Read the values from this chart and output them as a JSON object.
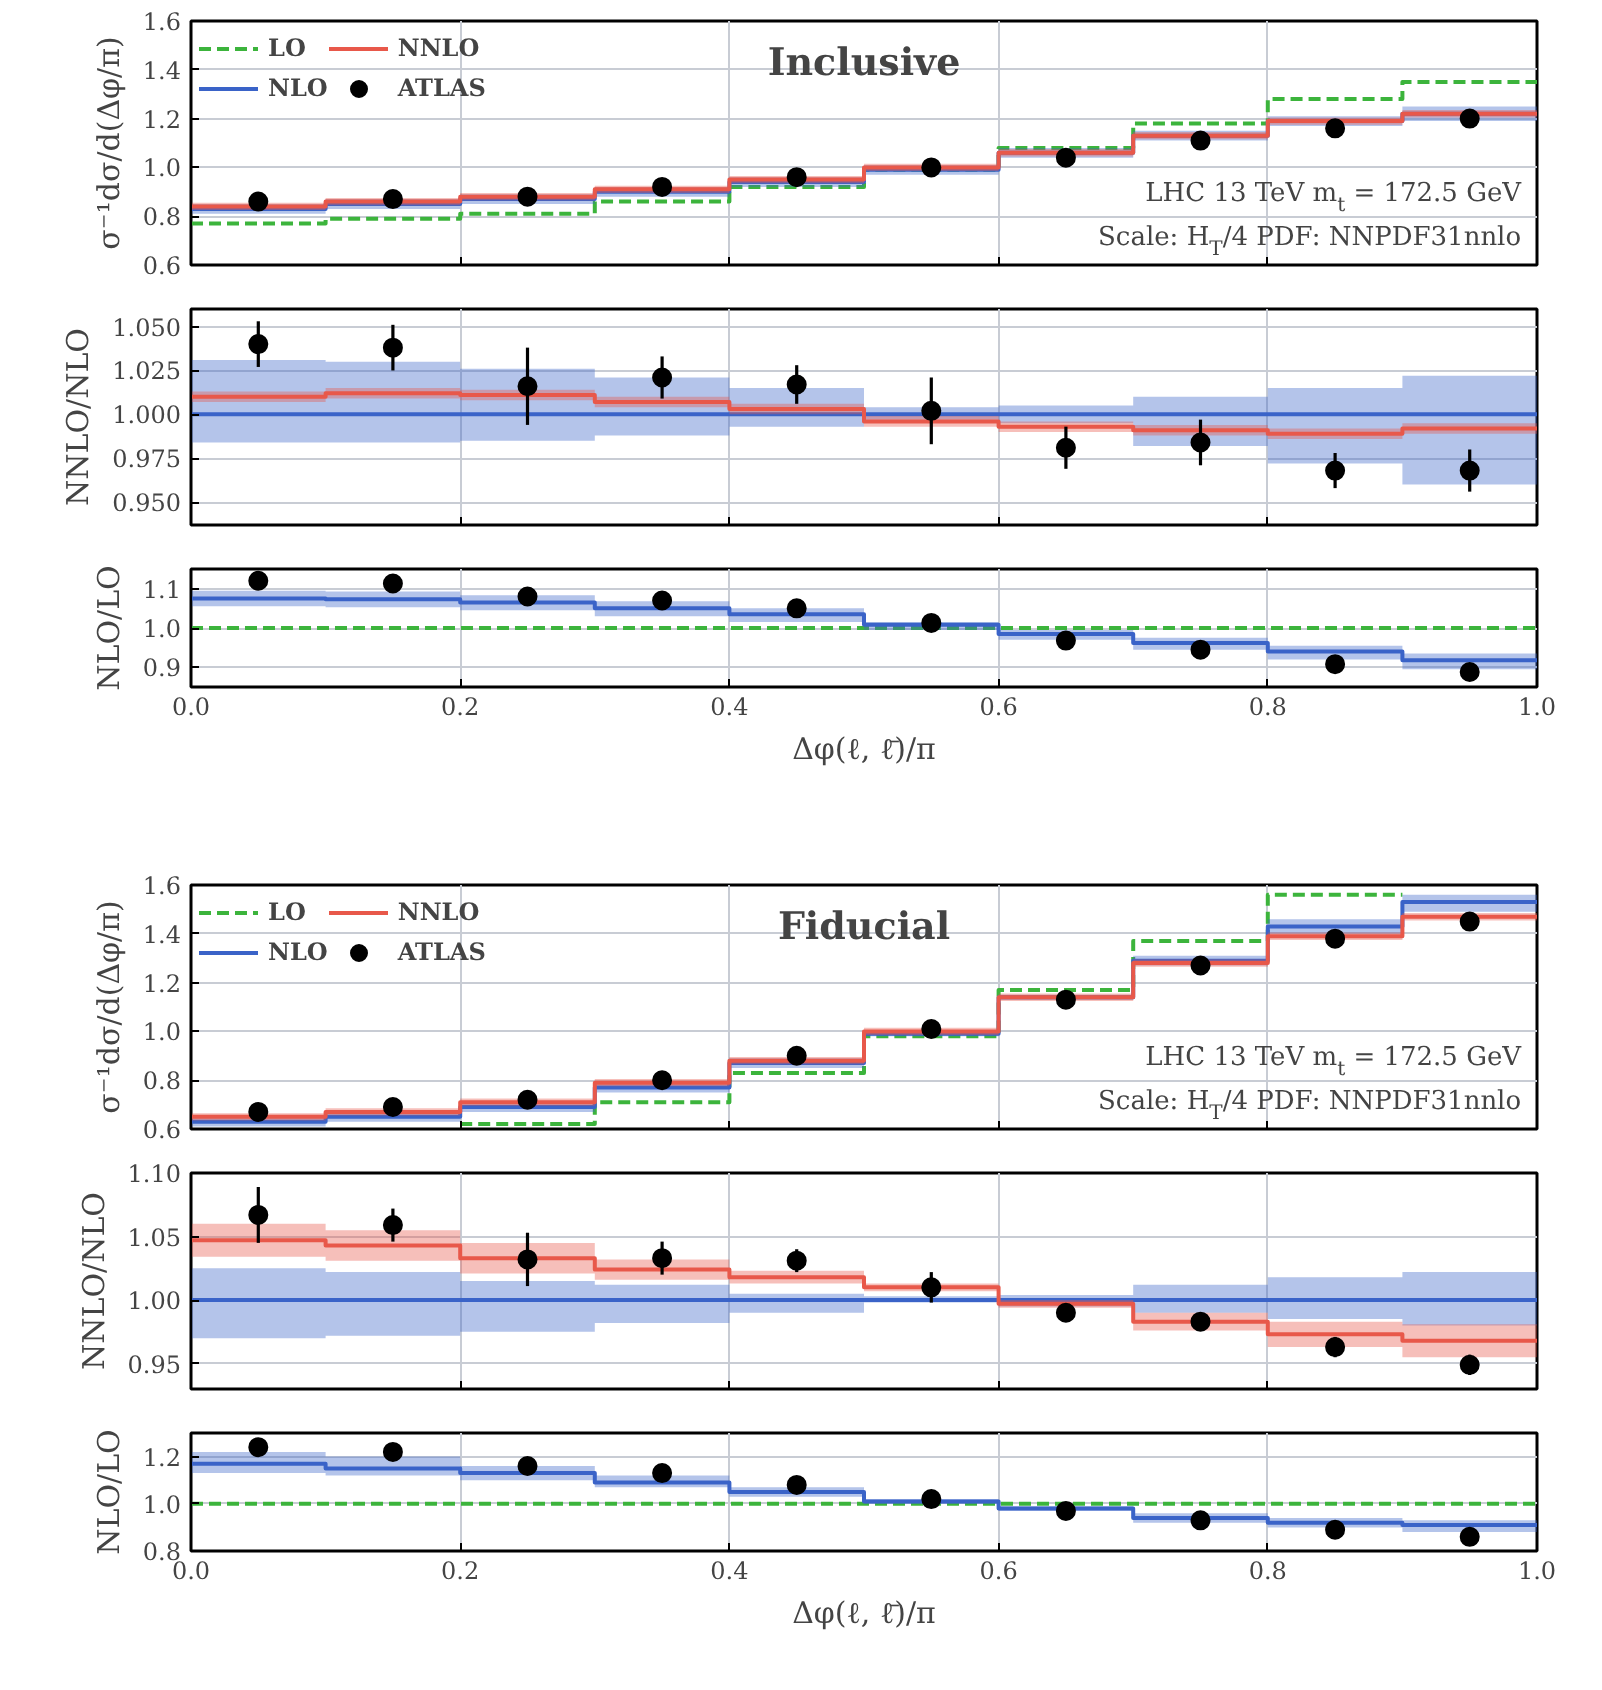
{
  "chart_data": [
    {
      "type": "step",
      "title": "Inclusive",
      "ylabel": "σ⁻¹dσ/d(Δφ/π)",
      "xlim": [
        0,
        1
      ],
      "ylim": [
        0.6,
        1.6
      ],
      "xticks": [
        0,
        0.2,
        0.4,
        0.6,
        0.8,
        1
      ],
      "yticks": [
        0.6,
        0.8,
        {
          "value": 1.0,
          "label": "1.0"
        },
        1.2,
        1.4,
        1.6
      ],
      "tick_labels": "y",
      "grid": true,
      "legend": "top left",
      "annotations": [
        "LHC 13 TeV m$_{t}$ = 172.5 GeV",
        "Scale: H$_{T}$/4 PDF: NNPDF31nnlo"
      ],
      "series": [
        {
          "name": "LO",
          "line_style": "dashed",
          "color": "#3cb43c",
          "x": [
            0,
            0.1,
            0.2,
            0.3,
            0.4,
            0.5,
            0.6,
            0.7,
            0.8,
            0.9,
            1
          ],
          "values": [
            0.77,
            0.79,
            0.81,
            0.86,
            0.92,
            0.99,
            1.08,
            1.18,
            1.28,
            1.35,
            1.35
          ]
        },
        {
          "name": "NLO",
          "color": "#3a63c8",
          "x": [
            0,
            0.1,
            0.2,
            0.3,
            0.4,
            0.5,
            0.6,
            0.7,
            0.8,
            0.9,
            1
          ],
          "values": [
            0.83,
            0.85,
            0.87,
            0.9,
            0.94,
            0.99,
            1.06,
            1.13,
            1.19,
            1.22,
            1.22
          ],
          "lower": [
            0.81,
            0.83,
            0.85,
            0.88,
            0.92,
            0.97,
            1.04,
            1.11,
            1.17,
            1.19,
            1.19
          ],
          "upper": [
            0.85,
            0.87,
            0.89,
            0.92,
            0.96,
            1.01,
            1.08,
            1.15,
            1.21,
            1.25,
            1.25
          ]
        },
        {
          "name": "NNLO",
          "color": "#e8584a",
          "x": [
            0,
            0.1,
            0.2,
            0.3,
            0.4,
            0.5,
            0.6,
            0.7,
            0.8,
            0.9,
            1
          ],
          "values": [
            0.84,
            0.86,
            0.88,
            0.91,
            0.95,
            1.0,
            1.06,
            1.13,
            1.19,
            1.22,
            1.22
          ],
          "lower": [
            0.825,
            0.845,
            0.865,
            0.895,
            0.935,
            0.985,
            1.045,
            1.115,
            1.175,
            1.205,
            1.205
          ],
          "upper": [
            0.855,
            0.875,
            0.895,
            0.925,
            0.965,
            1.015,
            1.075,
            1.145,
            1.205,
            1.235,
            1.235
          ]
        },
        {
          "name": "ATLAS",
          "type": "scatter",
          "marker": "circle",
          "color": "#000000",
          "x": [
            0.05,
            0.15,
            0.25,
            0.35,
            0.45,
            0.55,
            0.65,
            0.75,
            0.85,
            0.95
          ],
          "values": [
            0.86,
            0.87,
            0.88,
            0.92,
            0.96,
            1.0,
            1.04,
            1.11,
            1.16,
            1.2
          ]
        }
      ]
    },
    {
      "type": "step",
      "ylabel": "NNLO/NLO",
      "xlim": [
        0,
        1
      ],
      "ylim": [
        0.937,
        1.06
      ],
      "xticks": [
        0,
        0.2,
        0.4,
        0.6,
        0.8,
        1
      ],
      "yticks": [
        {
          "value": 0.95,
          "label": "0.950"
        },
        {
          "value": 0.975,
          "label": "0.975"
        },
        {
          "value": 1.0,
          "label": "1.000"
        },
        {
          "value": 1.025,
          "label": "1.025"
        },
        {
          "value": 1.05,
          "label": "1.050"
        }
      ],
      "tick_labels": "y",
      "grid": true,
      "series": [
        {
          "color": "#3a63c8",
          "x": [
            0,
            0.1,
            0.2,
            0.3,
            0.4,
            0.5,
            0.6,
            0.7,
            0.8,
            0.9,
            1
          ],
          "values": [
            1,
            1,
            1,
            1,
            1,
            1,
            1,
            1,
            1,
            1,
            1
          ],
          "lower": [
            0.984,
            0.984,
            0.985,
            0.988,
            0.993,
            0.997,
            0.995,
            0.982,
            0.972,
            0.96,
            0.96
          ],
          "upper": [
            1.031,
            1.03,
            1.026,
            1.021,
            1.015,
            1.004,
            1.005,
            1.01,
            1.015,
            1.022,
            1.022
          ]
        },
        {
          "color": "#e8584a",
          "x": [
            0,
            0.1,
            0.2,
            0.3,
            0.4,
            0.5,
            0.6,
            0.7,
            0.8,
            0.9,
            1
          ],
          "values": [
            1.01,
            1.012,
            1.011,
            1.007,
            1.003,
            0.996,
            0.993,
            0.991,
            0.989,
            0.992,
            0.992
          ],
          "lower": [
            1.007,
            1.009,
            1.008,
            1.004,
            1.0,
            0.993,
            0.99,
            0.988,
            0.986,
            0.989,
            0.989
          ],
          "upper": [
            1.013,
            1.015,
            1.014,
            1.01,
            1.006,
            0.999,
            0.996,
            0.994,
            0.992,
            0.995,
            0.995
          ]
        },
        {
          "type": "scatter",
          "marker": "circle",
          "color": "#000000",
          "x": [
            0.05,
            0.15,
            0.25,
            0.35,
            0.45,
            0.55,
            0.65,
            0.75,
            0.85,
            0.95
          ],
          "values": [
            1.04,
            1.038,
            1.016,
            1.021,
            1.017,
            1.002,
            0.981,
            0.984,
            0.968,
            0.968
          ],
          "errors": [
            0.013,
            0.013,
            0.022,
            0.012,
            0.011,
            0.019,
            0.012,
            0.013,
            0.01,
            0.012
          ]
        }
      ]
    },
    {
      "type": "step",
      "ylabel": "NLO/LO",
      "xlabel": "Δφ(ℓ, ℓ̄)/π",
      "xlim": [
        0,
        1
      ],
      "ylim": [
        0.85,
        1.15
      ],
      "xticks": [
        {
          "value": 0,
          "label": "0.0"
        },
        {
          "value": 0.2,
          "label": "0.2"
        },
        {
          "value": 0.4,
          "label": "0.4"
        },
        {
          "value": 0.6,
          "label": "0.6"
        },
        {
          "value": 0.8,
          "label": "0.8"
        },
        {
          "value": 1,
          "label": "1.0"
        }
      ],
      "yticks": [
        0.9,
        {
          "value": 1.0,
          "label": "1.0"
        },
        1.1
      ],
      "grid": true,
      "series": [
        {
          "line_style": "dashed",
          "color": "#3cb43c",
          "x": [
            0,
            0.1,
            0.2,
            0.3,
            0.4,
            0.5,
            0.6,
            0.7,
            0.8,
            0.9,
            1
          ],
          "values": [
            1,
            1,
            1,
            1,
            1,
            1,
            1,
            1,
            1,
            1,
            1
          ]
        },
        {
          "color": "#3a63c8",
          "x": [
            0,
            0.1,
            0.2,
            0.3,
            0.4,
            0.5,
            0.6,
            0.7,
            0.8,
            0.9,
            1
          ],
          "values": [
            1.075,
            1.073,
            1.065,
            1.05,
            1.035,
            1.008,
            0.985,
            0.962,
            0.94,
            0.918,
            0.918
          ],
          "lower": [
            1.055,
            1.053,
            1.045,
            1.03,
            1.015,
            0.995,
            0.97,
            0.945,
            0.92,
            0.895,
            0.895
          ],
          "upper": [
            1.095,
            1.093,
            1.083,
            1.068,
            1.05,
            1.015,
            0.995,
            0.975,
            0.955,
            0.935,
            0.935
          ]
        },
        {
          "type": "scatter",
          "marker": "circle",
          "color": "#000000",
          "x": [
            0.05,
            0.15,
            0.25,
            0.35,
            0.45,
            0.55,
            0.65,
            0.75,
            0.85,
            0.95
          ],
          "values": [
            1.12,
            1.113,
            1.08,
            1.07,
            1.05,
            1.013,
            0.968,
            0.945,
            0.908,
            0.888
          ]
        }
      ]
    },
    {
      "type": "step",
      "title": "Fiducial",
      "ylabel": "σ⁻¹dσ/d(Δφ/π)",
      "xlim": [
        0,
        1
      ],
      "ylim": [
        0.6,
        1.6
      ],
      "xticks": [
        0,
        0.2,
        0.4,
        0.6,
        0.8,
        1
      ],
      "yticks": [
        0.6,
        0.8,
        {
          "value": 1.0,
          "label": "1.0"
        },
        1.2,
        1.4,
        1.6
      ],
      "tick_labels": "y",
      "grid": true,
      "legend": "top left",
      "annotations": [
        "LHC 13 TeV m$_{t}$ = 172.5 GeV",
        "Scale: H$_{T}$/4 PDF: NNPDF31nnlo"
      ],
      "series": [
        {
          "name": "LO",
          "line_style": "dashed",
          "color": "#3cb43c",
          "x": [
            0.2,
            0.3,
            0.4,
            0.5,
            0.6,
            0.7,
            0.8,
            0.9
          ],
          "values": [
            0.62,
            0.71,
            0.83,
            0.98,
            1.17,
            1.37,
            1.56,
            1.56
          ]
        },
        {
          "name": "NLO",
          "color": "#3a63c8",
          "x": [
            0,
            0.1,
            0.2,
            0.3,
            0.4,
            0.5,
            0.6,
            0.7,
            0.8,
            0.9,
            1
          ],
          "values": [
            0.63,
            0.65,
            0.69,
            0.77,
            0.87,
            0.99,
            1.14,
            1.29,
            1.43,
            1.53,
            1.53
          ],
          "lower": [
            0.61,
            0.63,
            0.67,
            0.75,
            0.85,
            0.98,
            1.13,
            1.27,
            1.4,
            1.49,
            1.49
          ],
          "upper": [
            0.65,
            0.67,
            0.71,
            0.79,
            0.89,
            1.0,
            1.15,
            1.31,
            1.46,
            1.56,
            1.56
          ]
        },
        {
          "name": "NNLO",
          "color": "#e8584a",
          "x": [
            0,
            0.1,
            0.2,
            0.3,
            0.4,
            0.5,
            0.6,
            0.7,
            0.8,
            0.9,
            1
          ],
          "values": [
            0.65,
            0.67,
            0.71,
            0.79,
            0.88,
            1.0,
            1.14,
            1.28,
            1.39,
            1.47,
            1.47
          ],
          "lower": [
            0.635,
            0.655,
            0.695,
            0.775,
            0.865,
            0.985,
            1.125,
            1.265,
            1.375,
            1.455,
            1.455
          ],
          "upper": [
            0.665,
            0.685,
            0.725,
            0.805,
            0.895,
            1.015,
            1.155,
            1.295,
            1.405,
            1.485,
            1.485
          ]
        },
        {
          "name": "ATLAS",
          "type": "scatter",
          "marker": "circle",
          "color": "#000000",
          "x": [
            0.05,
            0.15,
            0.25,
            0.35,
            0.45,
            0.55,
            0.65,
            0.75,
            0.85,
            0.95
          ],
          "values": [
            0.67,
            0.69,
            0.72,
            0.8,
            0.9,
            1.01,
            1.13,
            1.27,
            1.38,
            1.45
          ]
        }
      ]
    },
    {
      "type": "step",
      "ylabel": "NNLO/NLO",
      "xlim": [
        0,
        1
      ],
      "ylim": [
        0.93,
        1.1
      ],
      "xticks": [
        0,
        0.2,
        0.4,
        0.6,
        0.8,
        1
      ],
      "yticks": [
        0.95,
        {
          "value": 1.0,
          "label": "1.00"
        },
        1.05,
        {
          "value": 1.1,
          "label": "1.10"
        }
      ],
      "tick_labels": "y",
      "grid": true,
      "series": [
        {
          "color": "#3a63c8",
          "x": [
            0,
            0.1,
            0.2,
            0.3,
            0.4,
            0.5,
            0.6,
            0.7,
            0.8,
            0.9,
            1
          ],
          "values": [
            1,
            1,
            1,
            1,
            1,
            1,
            1,
            1,
            1,
            1,
            1
          ],
          "lower": [
            0.97,
            0.972,
            0.975,
            0.982,
            0.99,
            0.998,
            0.995,
            0.99,
            0.985,
            0.98,
            0.98
          ],
          "upper": [
            1.025,
            1.022,
            1.015,
            1.012,
            1.005,
            1.003,
            1.004,
            1.012,
            1.018,
            1.022,
            1.022
          ]
        },
        {
          "color": "#e8584a",
          "x": [
            0,
            0.1,
            0.2,
            0.3,
            0.4,
            0.5,
            0.6,
            0.7,
            0.8,
            0.9,
            1
          ],
          "values": [
            1.047,
            1.043,
            1.033,
            1.024,
            1.018,
            1.01,
            0.997,
            0.983,
            0.973,
            0.968,
            0.968
          ],
          "lower": [
            1.034,
            1.031,
            1.021,
            1.016,
            1.013,
            1.007,
            0.994,
            0.976,
            0.963,
            0.955,
            0.955
          ],
          "upper": [
            1.06,
            1.055,
            1.045,
            1.032,
            1.023,
            1.013,
            1.0,
            0.99,
            0.983,
            0.981,
            0.981
          ]
        },
        {
          "type": "scatter",
          "marker": "circle",
          "color": "#000000",
          "x": [
            0.05,
            0.15,
            0.25,
            0.35,
            0.45,
            0.55,
            0.65,
            0.75,
            0.85,
            0.95
          ],
          "values": [
            1.067,
            1.059,
            1.032,
            1.033,
            1.031,
            1.01,
            0.99,
            0.983,
            0.963,
            0.949
          ],
          "errors": [
            0.022,
            0.013,
            0.021,
            0.013,
            0.009,
            0.012,
            0.006,
            0.006,
            0.008,
            0.008
          ]
        }
      ]
    },
    {
      "type": "step",
      "ylabel": "NLO/LO",
      "xlabel": "Δφ(ℓ, ℓ̄)/π",
      "xlim": [
        0,
        1
      ],
      "ylim": [
        0.8,
        1.3
      ],
      "xticks": [
        {
          "value": 0,
          "label": "0.0"
        },
        {
          "value": 0.2,
          "label": "0.2"
        },
        {
          "value": 0.4,
          "label": "0.4"
        },
        {
          "value": 0.6,
          "label": "0.6"
        },
        {
          "value": 0.8,
          "label": "0.8"
        },
        {
          "value": 1,
          "label": "1.0"
        }
      ],
      "yticks": [
        0.8,
        {
          "value": 1.0,
          "label": "1.0"
        },
        1.2
      ],
      "grid": true,
      "series": [
        {
          "line_style": "dashed",
          "color": "#3cb43c",
          "x": [
            0,
            0.1,
            0.2,
            0.3,
            0.4,
            0.5,
            0.6,
            0.7,
            0.8,
            0.9,
            1
          ],
          "values": [
            1,
            1,
            1,
            1,
            1,
            1,
            1,
            1,
            1,
            1,
            1
          ]
        },
        {
          "color": "#3a63c8",
          "x": [
            0,
            0.1,
            0.2,
            0.3,
            0.4,
            0.5,
            0.6,
            0.7,
            0.8,
            0.9,
            1
          ],
          "values": [
            1.17,
            1.15,
            1.13,
            1.09,
            1.05,
            1.01,
            0.98,
            0.94,
            0.92,
            0.91,
            0.91
          ],
          "lower": [
            1.13,
            1.12,
            1.1,
            1.07,
            1.03,
            1.0,
            0.97,
            0.92,
            0.9,
            0.88,
            0.88
          ],
          "upper": [
            1.22,
            1.2,
            1.16,
            1.12,
            1.07,
            1.02,
            0.99,
            0.96,
            0.94,
            0.93,
            0.93
          ]
        },
        {
          "type": "scatter",
          "marker": "circle",
          "color": "#000000",
          "x": [
            0.05,
            0.15,
            0.25,
            0.35,
            0.45,
            0.55,
            0.65,
            0.75,
            0.85,
            0.95
          ],
          "values": [
            1.24,
            1.22,
            1.16,
            1.13,
            1.08,
            1.02,
            0.97,
            0.93,
            0.89,
            0.86
          ]
        }
      ]
    }
  ]
}
